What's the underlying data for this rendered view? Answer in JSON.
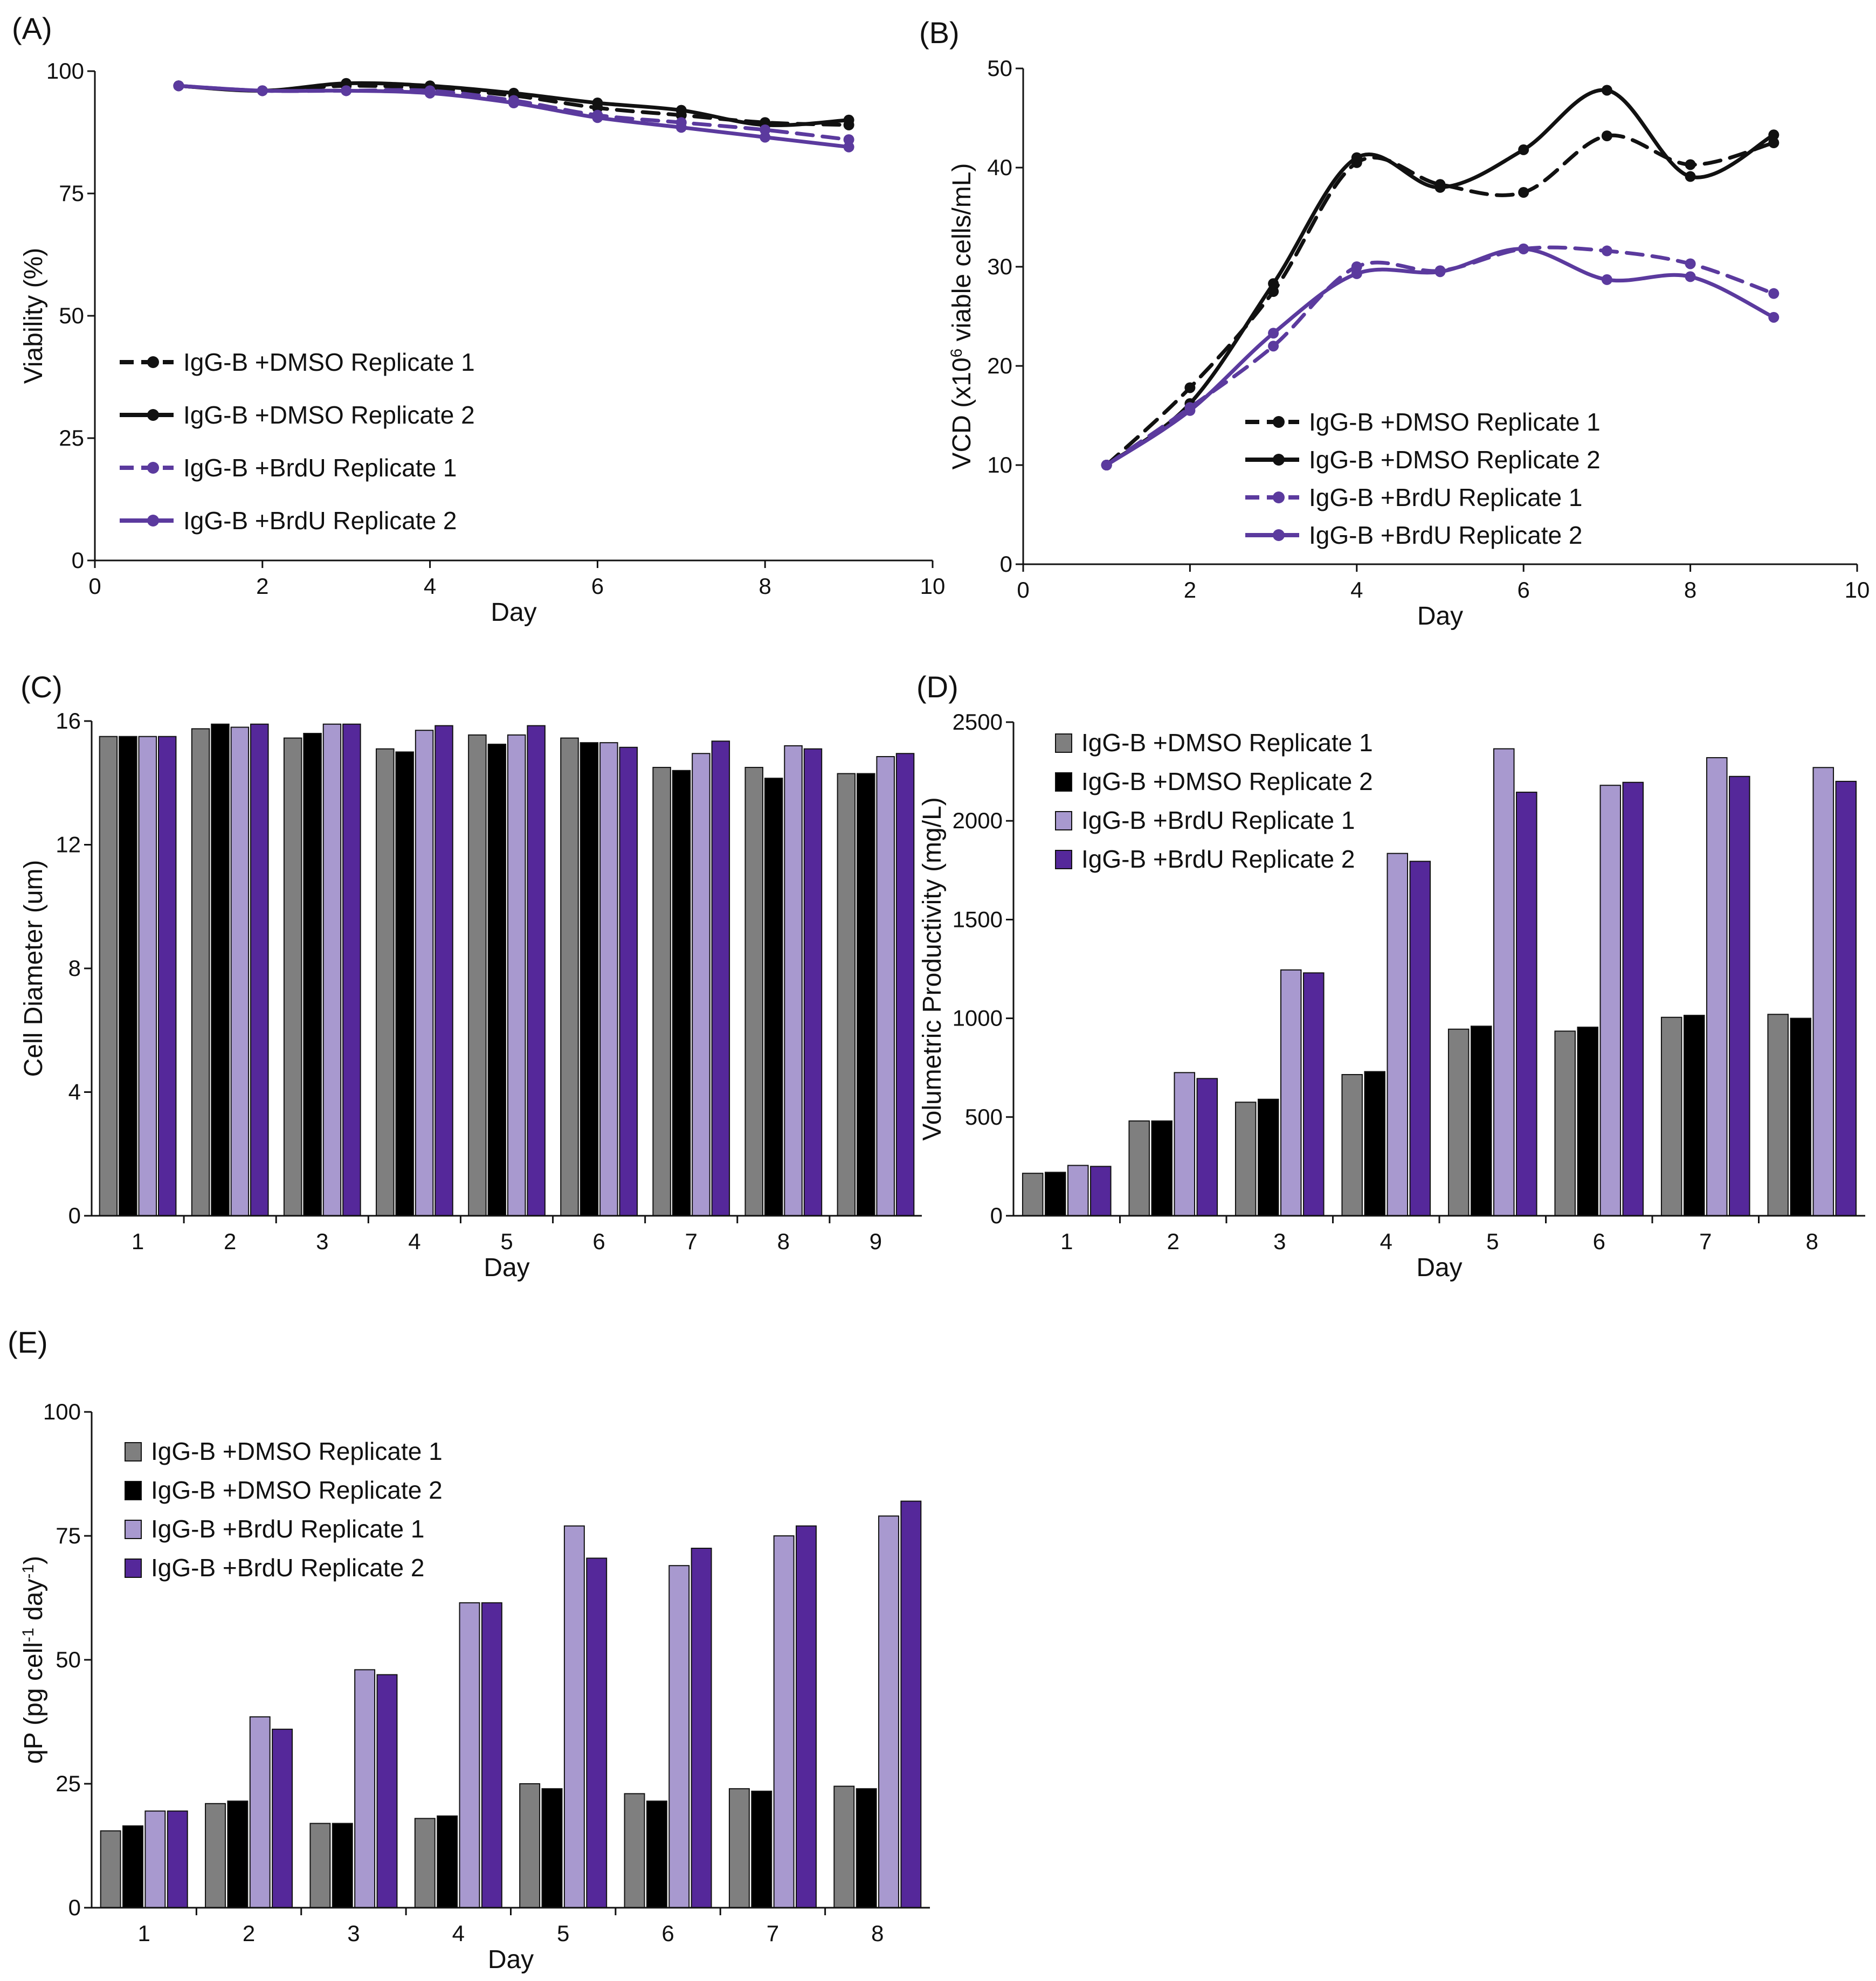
{
  "figure": {
    "series_names": [
      "IgG-B +DMSO Replicate 1",
      "IgG-B +DMSO Replicate 2",
      "IgG-B +BrdU Replicate 1",
      "IgG-B +BrdU Replicate 2"
    ],
    "colors": {
      "dmso_line": "#111111",
      "brdu_line": "#5b3a9e",
      "dmso_rep1_bar": "#7f7f7f",
      "dmso_rep2_bar": "#000000",
      "brdu_rep1_bar": "#a899cf",
      "brdu_rep2_bar": "#55289a"
    }
  },
  "chart_data": [
    {
      "id": "A",
      "panel_label": "(A)",
      "type": "line",
      "xlabel": "Day",
      "ylabel": "Viability (%)",
      "ylabel_parts": [
        "Viability (%)"
      ],
      "xlim": [
        0,
        10
      ],
      "ylim": [
        0,
        100
      ],
      "xticks": [
        0,
        2,
        4,
        6,
        8,
        10
      ],
      "yticks": [
        0,
        25,
        50,
        75,
        100
      ],
      "legend_position": "center-left",
      "x": [
        1,
        2,
        3,
        4,
        5,
        6,
        7,
        8,
        9
      ],
      "series": [
        {
          "name": "IgG-B +DMSO Replicate 1",
          "values": [
            97,
            96,
            97,
            96.5,
            95,
            92.5,
            91,
            89.5,
            89
          ],
          "color": "#111111",
          "dashed": true
        },
        {
          "name": "IgG-B +DMSO Replicate 2",
          "values": [
            97,
            96,
            97.5,
            97,
            95.5,
            93.5,
            92,
            89,
            90
          ],
          "color": "#111111",
          "dashed": false
        },
        {
          "name": "IgG-B +BrdU Replicate 1",
          "values": [
            97,
            96,
            96,
            96,
            94,
            91,
            89.5,
            88,
            86
          ],
          "color": "#5b3a9e",
          "dashed": true
        },
        {
          "name": "IgG-B +BrdU Replicate 2",
          "values": [
            97,
            96,
            96,
            95.5,
            93.5,
            90.5,
            88.5,
            86.5,
            84.5
          ],
          "color": "#5b3a9e",
          "dashed": false
        }
      ]
    },
    {
      "id": "B",
      "panel_label": "(B)",
      "type": "line",
      "xlabel": "Day",
      "ylabel": "VCD (x10⁶ viable cells/mL)",
      "ylabel_parts": [
        "VCD (x10",
        "6",
        " viable cells/mL)"
      ],
      "xlim": [
        0,
        10
      ],
      "ylim": [
        0,
        50
      ],
      "xticks": [
        0,
        2,
        4,
        6,
        8,
        10
      ],
      "xtick_labels": [
        "0",
        "2",
        "4",
        "6",
        "8",
        "10"
      ],
      "yticks": [
        0,
        10,
        20,
        30,
        40,
        50
      ],
      "legend_position": "bottom-right",
      "x": [
        1,
        2,
        3,
        4,
        5,
        6,
        7,
        8,
        9
      ],
      "series": [
        {
          "name": "IgG-B +DMSO Replicate 1",
          "values": [
            10,
            17.8,
            27.5,
            40.5,
            38.3,
            37.5,
            43.2,
            40.3,
            42.5
          ],
          "color": "#111111",
          "dashed": true
        },
        {
          "name": "IgG-B +DMSO Replicate 2",
          "values": [
            10,
            16.2,
            28.3,
            41,
            38,
            41.8,
            47.8,
            39.1,
            43.3
          ],
          "color": "#111111",
          "dashed": false
        },
        {
          "name": "IgG-B +BrdU Replicate 1",
          "values": [
            10,
            15.8,
            22,
            30,
            29.6,
            31.8,
            31.6,
            30.3,
            27.3
          ],
          "color": "#5b3a9e",
          "dashed": true
        },
        {
          "name": "IgG-B +BrdU Replicate 2",
          "values": [
            10,
            15.5,
            23.3,
            29.3,
            29.5,
            31.8,
            28.7,
            29,
            24.9
          ],
          "color": "#5b3a9e",
          "dashed": false
        }
      ]
    },
    {
      "id": "C",
      "panel_label": "(C)",
      "type": "bar",
      "xlabel": "Day",
      "ylabel": "Cell Diameter (um)",
      "ylabel_parts": [
        "Cell Diameter (um)"
      ],
      "ylim": [
        0,
        16
      ],
      "yticks": [
        0,
        4,
        8,
        12,
        16
      ],
      "legend_position": "none",
      "categories": [
        "1",
        "2",
        "3",
        "4",
        "5",
        "6",
        "7",
        "8",
        "9"
      ],
      "series": [
        {
          "name": "IgG-B +DMSO Replicate 1",
          "values": [
            15.5,
            15.75,
            15.45,
            15.1,
            15.55,
            15.45,
            14.5,
            14.5,
            14.3
          ],
          "color": "#7f7f7f"
        },
        {
          "name": "IgG-B +DMSO Replicate 2",
          "values": [
            15.5,
            15.9,
            15.6,
            15,
            15.25,
            15.3,
            14.4,
            14.15,
            14.3
          ],
          "color": "#000000"
        },
        {
          "name": "IgG-B +BrdU Replicate 1",
          "values": [
            15.5,
            15.8,
            15.9,
            15.7,
            15.55,
            15.3,
            14.95,
            15.2,
            14.85
          ],
          "color": "#a899cf"
        },
        {
          "name": "IgG-B +BrdU Replicate 2",
          "values": [
            15.5,
            15.9,
            15.9,
            15.85,
            15.85,
            15.15,
            15.35,
            15.1,
            14.95
          ],
          "color": "#55289a"
        }
      ]
    },
    {
      "id": "D",
      "panel_label": "(D)",
      "type": "bar",
      "xlabel": "Day",
      "ylabel": "Volumetric Productivity (mg/L)",
      "ylabel_parts": [
        "Volumetric Productivity (mg/L)"
      ],
      "ylim": [
        0,
        2500
      ],
      "yticks": [
        0,
        500,
        1000,
        1500,
        2000,
        2500
      ],
      "legend_position": "top-left",
      "categories": [
        "1",
        "2",
        "3",
        "4",
        "5",
        "6",
        "7",
        "8"
      ],
      "series": [
        {
          "name": "IgG-B +DMSO Replicate 1",
          "values": [
            215,
            480,
            575,
            715,
            945,
            935,
            1005,
            1020
          ],
          "color": "#7f7f7f"
        },
        {
          "name": "IgG-B +DMSO Replicate 2",
          "values": [
            220,
            480,
            590,
            730,
            960,
            955,
            1015,
            1000
          ],
          "color": "#000000"
        },
        {
          "name": "IgG-B +BrdU Replicate 1",
          "values": [
            255,
            725,
            1245,
            1835,
            2365,
            2180,
            2320,
            2270
          ],
          "color": "#a899cf"
        },
        {
          "name": "IgG-B +BrdU Replicate 2",
          "values": [
            250,
            695,
            1230,
            1795,
            2145,
            2195,
            2225,
            2200
          ],
          "color": "#55289a"
        }
      ]
    },
    {
      "id": "E",
      "panel_label": "(E)",
      "type": "bar",
      "xlabel": "Day",
      "ylabel": "qP (pg cell⁻¹ day⁻¹)",
      "ylabel_parts": [
        "qP (pg cell",
        "-1",
        " day",
        "-1",
        ")"
      ],
      "ylim": [
        0,
        100
      ],
      "yticks": [
        0,
        25,
        50,
        75,
        100
      ],
      "legend_position": "top-left",
      "categories": [
        "1",
        "2",
        "3",
        "4",
        "5",
        "6",
        "7",
        "8"
      ],
      "series": [
        {
          "name": "IgG-B +DMSO Replicate 1",
          "values": [
            15.5,
            21,
            17,
            18,
            25,
            23,
            24,
            24.5
          ],
          "color": "#7f7f7f"
        },
        {
          "name": "IgG-B +DMSO Replicate 2",
          "values": [
            16.5,
            21.5,
            17,
            18.5,
            24,
            21.5,
            23.5,
            24
          ],
          "color": "#000000"
        },
        {
          "name": "IgG-B +BrdU Replicate 1",
          "values": [
            19.5,
            38.5,
            48,
            61.5,
            77,
            69,
            75,
            79
          ],
          "color": "#a899cf"
        },
        {
          "name": "IgG-B +BrdU Replicate 2",
          "values": [
            19.5,
            36,
            47,
            61.5,
            70.5,
            72.5,
            77,
            82
          ],
          "color": "#55289a"
        }
      ]
    }
  ]
}
